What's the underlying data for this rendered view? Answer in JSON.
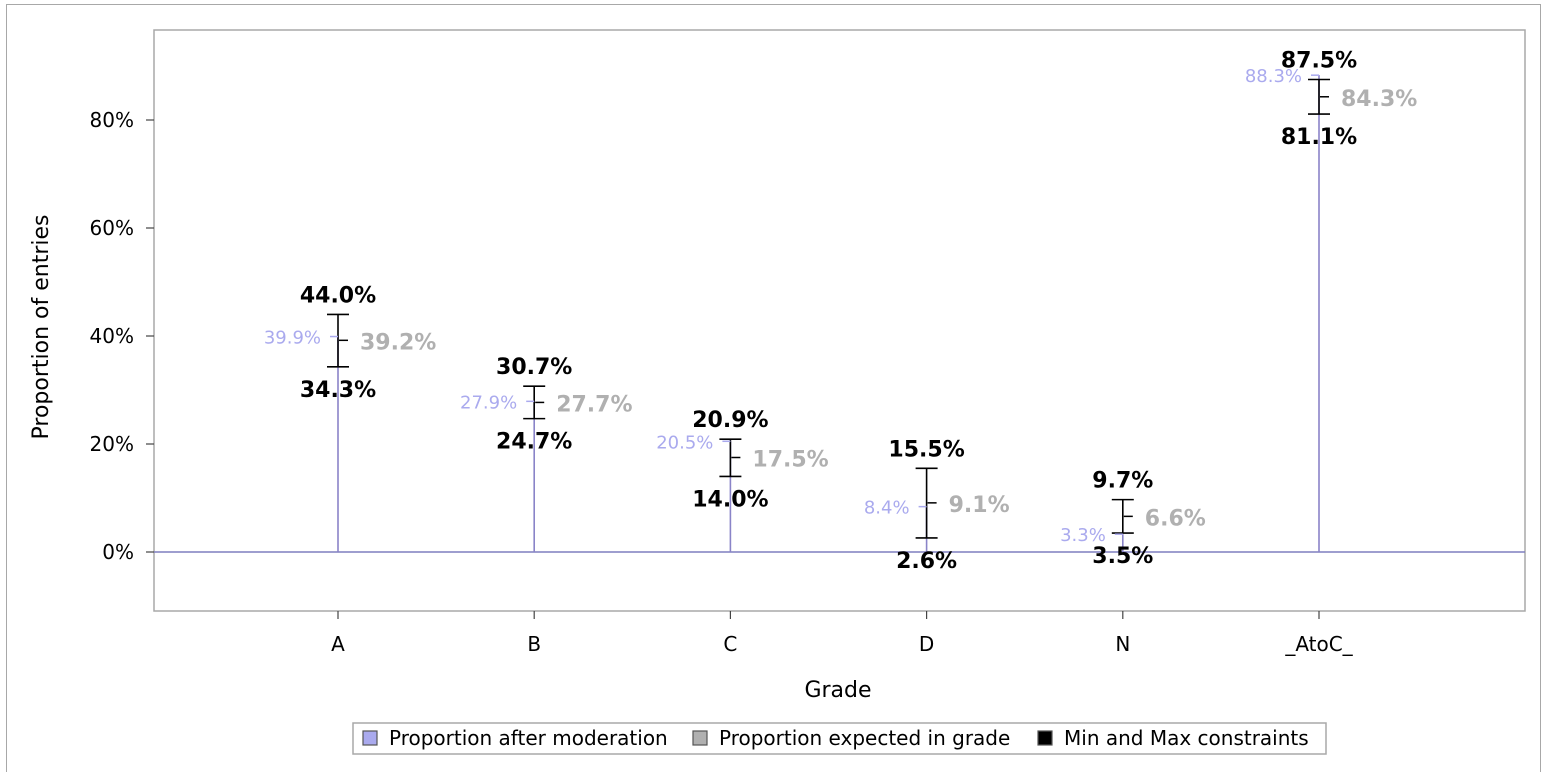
{
  "chart_data": {
    "type": "needle",
    "xlabel": "Grade",
    "ylabel": "Proportion of entries",
    "categories": [
      "A",
      "B",
      "C",
      "D",
      "N",
      "_AtoC_"
    ],
    "ylim": [
      -11,
      95
    ],
    "yticks": [
      0,
      20,
      40,
      60,
      80
    ],
    "ytick_labels": [
      "0%",
      "20%",
      "40%",
      "60%",
      "80%"
    ],
    "series": [
      {
        "name": "Proportion after moderation",
        "color": "#aaaaee",
        "values": [
          39.9,
          27.9,
          20.5,
          8.4,
          3.3,
          88.3
        ],
        "labels": [
          "39.9%",
          "27.9%",
          "20.5%",
          "8.4%",
          "3.3%",
          "88.3%"
        ]
      },
      {
        "name": "Proportion expected in grade",
        "color": "#b0b0b0",
        "values": [
          39.2,
          27.7,
          17.5,
          9.1,
          6.6,
          84.3
        ],
        "labels": [
          "39.2%",
          "27.7%",
          "17.5%",
          "9.1%",
          "6.6%",
          "84.3%"
        ]
      },
      {
        "name": "Min and Max constraints",
        "color": "#000000",
        "min": [
          34.3,
          24.7,
          14.0,
          2.6,
          3.5,
          81.1
        ],
        "max": [
          44.0,
          30.7,
          20.9,
          15.5,
          9.7,
          87.5
        ],
        "min_labels": [
          "34.3%",
          "24.7%",
          "14.0%",
          "2.6%",
          "3.5%",
          "81.1%"
        ],
        "max_labels": [
          "44.0%",
          "30.7%",
          "20.9%",
          "15.5%",
          "9.7%",
          "87.5%"
        ]
      }
    ],
    "grid": false,
    "legend_position": "bottom"
  }
}
